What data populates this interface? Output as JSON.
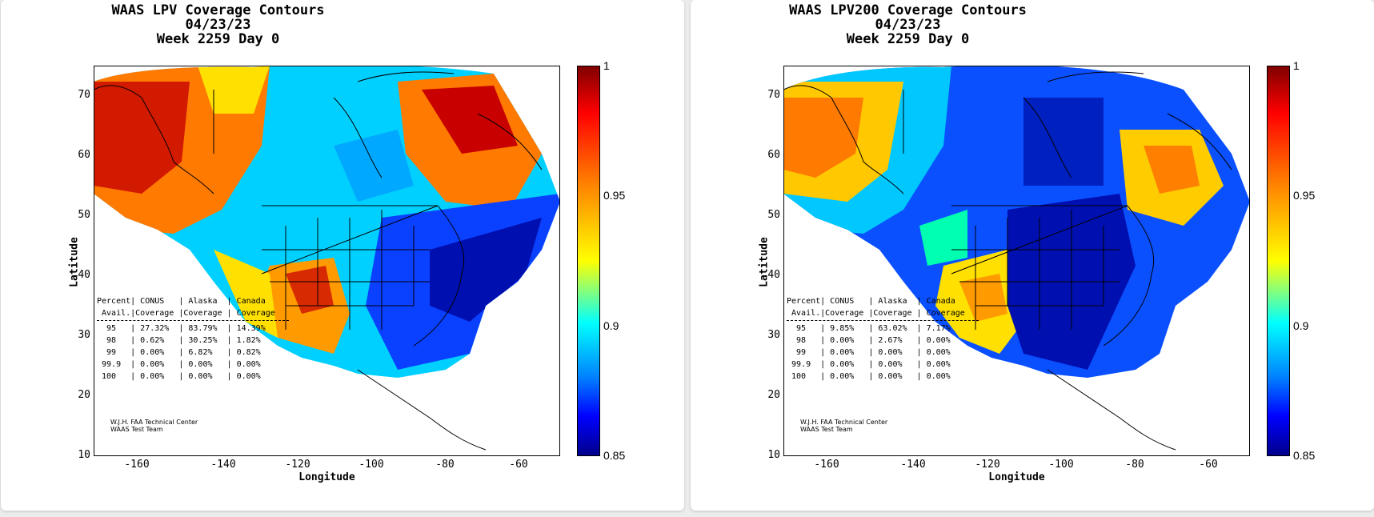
{
  "panels": [
    {
      "title_lines": [
        "WAAS LPV Coverage Contours",
        "04/23/23",
        "Week 2259 Day 0"
      ],
      "stats": {
        "header": "Percent| CONUS   | Alaska  | Canada",
        "subheader": " Avail.|Coverage |Coverage | Coverage",
        "rows": [
          "  95   | 27.32%  | 83.79%  | 14.39%",
          "  98   | 0.62%   | 30.25%  | 1.82%",
          "  99   | 0.00%   | 6.82%   | 0.82%",
          " 99.9  | 0.00%   | 0.00%   | 0.00%",
          " 100   | 0.00%   | 0.00%   | 0.00%"
        ]
      },
      "map_variant": "lpv"
    },
    {
      "title_lines": [
        "WAAS LPV200 Coverage Contours",
        "04/23/23",
        "Week 2259 Day 0"
      ],
      "stats": {
        "header": "Percent| CONUS   | Alaska  | Canada",
        "subheader": " Avail.|Coverage |Coverage | Coverage",
        "rows": [
          "  95   | 9.85%   | 63.02%  | 7.17%",
          "  98   | 0.00%   | 2.67%   | 0.00%",
          "  99   | 0.00%   | 0.00%   | 0.00%",
          " 99.9  | 0.00%   | 0.00%   | 0.00%",
          " 100   | 0.00%   | 0.00%   | 0.00%"
        ]
      },
      "map_variant": "lpv200"
    }
  ],
  "axes": {
    "xlabel": "Longitude",
    "ylabel": "Latitude",
    "xticks": [
      "-160",
      "-140",
      "-120",
      "-100",
      "-80",
      "-60"
    ],
    "yticks": [
      "70",
      "60",
      "50",
      "40",
      "30",
      "20",
      "10"
    ],
    "xlim": [
      -175,
      -52
    ],
    "ylim": [
      10,
      75
    ]
  },
  "colorbar": {
    "ticks": [
      "1",
      "0.95",
      "0.9",
      "0.85"
    ],
    "range": [
      0.85,
      1
    ]
  },
  "credit": [
    "W.J.H. FAA Technical Center",
    "WAAS Test Team"
  ],
  "colors": {
    "red": "#b30000",
    "orange": "#ff8000",
    "yellow": "#ffff00",
    "cyan": "#00e5ff",
    "blue": "#0050ff",
    "navy": "#00008b"
  }
}
